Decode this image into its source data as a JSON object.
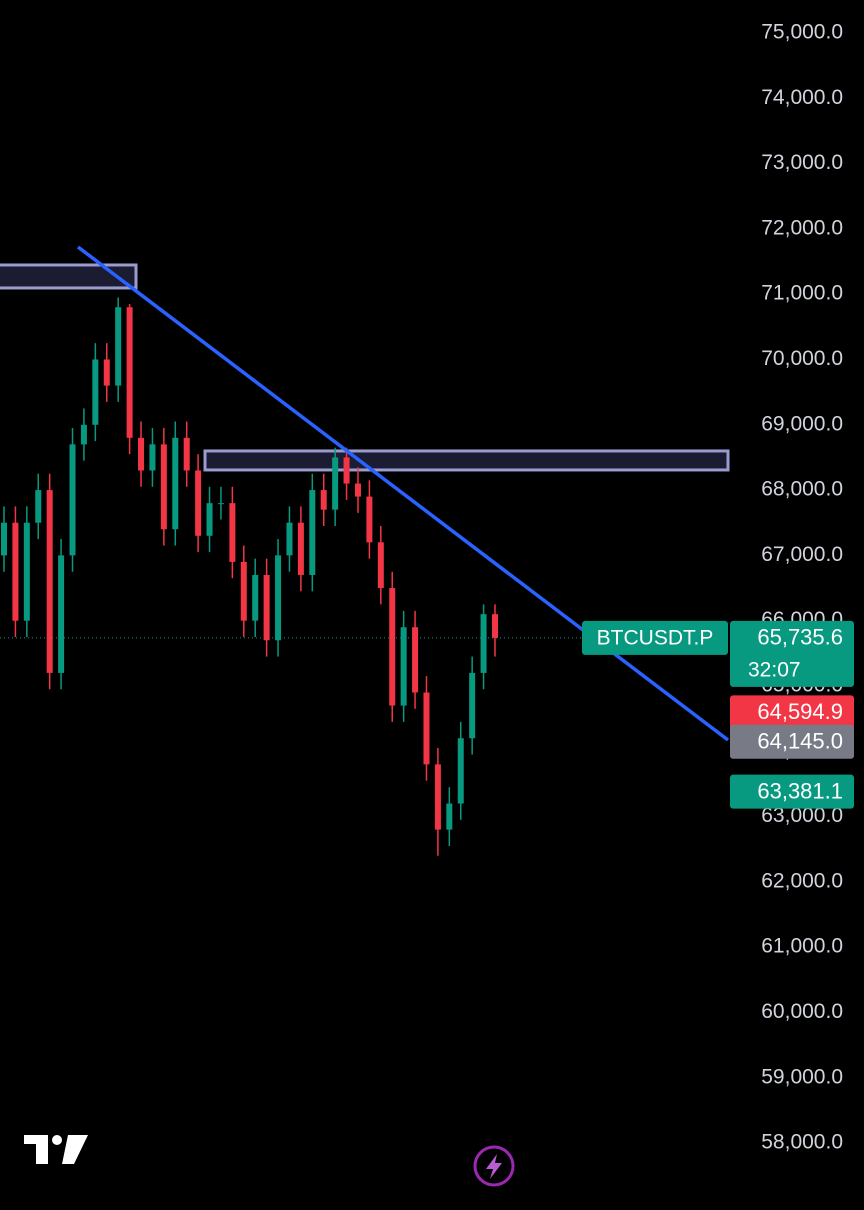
{
  "chart_data": {
    "type": "candlestick",
    "ylim": [
      56975,
      75505
    ],
    "yticks": [
      {
        "value": 75000,
        "label": "75,000.0"
      },
      {
        "value": 74000,
        "label": "74,000.0"
      },
      {
        "value": 73000,
        "label": "73,000.0"
      },
      {
        "value": 72000,
        "label": "72,000.0"
      },
      {
        "value": 71000,
        "label": "71,000.0"
      },
      {
        "value": 70000,
        "label": "70,000.0"
      },
      {
        "value": 69000,
        "label": "69,000.0"
      },
      {
        "value": 68000,
        "label": "68,000.0"
      },
      {
        "value": 67000,
        "label": "67,000.0"
      },
      {
        "value": 66000,
        "label": "66,000.0"
      },
      {
        "value": 65000,
        "label": "65,000.0"
      },
      {
        "value": 64000,
        "label": "64,000.0"
      },
      {
        "value": 63000,
        "label": "63,000.0"
      },
      {
        "value": 62000,
        "label": "62,000.0"
      },
      {
        "value": 61000,
        "label": "61,000.0"
      },
      {
        "value": 60000,
        "label": "60,000.0"
      },
      {
        "value": 59000,
        "label": "59,000.0"
      },
      {
        "value": 58000,
        "label": "58,000.0"
      }
    ],
    "up_color": "#089981",
    "down_color": "#f23645",
    "open": [
      67000,
      67500,
      66000,
      67500,
      68000,
      65200,
      67000,
      68700,
      69000,
      70000,
      69600,
      70800,
      68800,
      68300,
      68700,
      67400,
      68800,
      68300,
      67300,
      67800,
      67800,
      66900,
      66000,
      66700,
      65700,
      67000,
      67500,
      66700,
      68000,
      67700,
      68500,
      68100,
      67900,
      67200,
      66500,
      64700,
      65900,
      64900,
      63800,
      62800,
      63200,
      64200,
      65200,
      66100
    ],
    "high": [
      67750,
      67750,
      67750,
      68250,
      68250,
      67250,
      68950,
      69250,
      70250,
      70250,
      70950,
      70850,
      69050,
      68950,
      68950,
      69050,
      69050,
      68550,
      68050,
      68050,
      68050,
      67150,
      66950,
      66950,
      67250,
      67750,
      67750,
      68250,
      68250,
      68650,
      68650,
      68350,
      68150,
      67450,
      66750,
      66150,
      66150,
      65150,
      64050,
      63450,
      64450,
      65450,
      66250,
      66250
    ],
    "low": [
      66750,
      65750,
      65750,
      67250,
      64950,
      64950,
      66750,
      68450,
      68750,
      69350,
      69350,
      68550,
      68050,
      68050,
      67150,
      67150,
      68050,
      67050,
      67050,
      67550,
      66650,
      65750,
      65750,
      65450,
      65450,
      66750,
      66450,
      66450,
      67450,
      67450,
      67850,
      67650,
      66950,
      66250,
      64450,
      64450,
      64650,
      63550,
      62400,
      62550,
      62950,
      63950,
      64950,
      65450
    ],
    "close": [
      67500,
      66000,
      67500,
      68000,
      65200,
      67000,
      68700,
      69000,
      70000,
      69600,
      70800,
      68800,
      68300,
      68700,
      67400,
      68800,
      68300,
      67300,
      67800,
      67800,
      66900,
      66000,
      66700,
      65700,
      67000,
      67500,
      66700,
      68000,
      67700,
      68500,
      68100,
      67900,
      67200,
      66500,
      64700,
      65900,
      64900,
      63800,
      62800,
      63200,
      64200,
      65200,
      66100,
      65735.6
    ],
    "zones": [
      {
        "from": 71447,
        "to": 71095,
        "color": "#5b5ea6"
      },
      {
        "from": 68599,
        "to": 68308,
        "color": "#5b5ea6"
      }
    ],
    "trendline": {
      "start": 71723,
      "end": 64173,
      "color": "#2962ff"
    },
    "price_markers": [
      {
        "value": 65735.6,
        "label": "65,735.6",
        "color": "#089981",
        "symbol": "BTCUSDT.P",
        "countdown": "32:07"
      },
      {
        "value": 64594.9,
        "label": "64,594.9",
        "color": "#f23645"
      },
      {
        "value": 64145.0,
        "label": "64,145.0",
        "color": "#787b86"
      },
      {
        "value": 63381.1,
        "label": "63,381.1",
        "color": "#089981"
      }
    ]
  }
}
